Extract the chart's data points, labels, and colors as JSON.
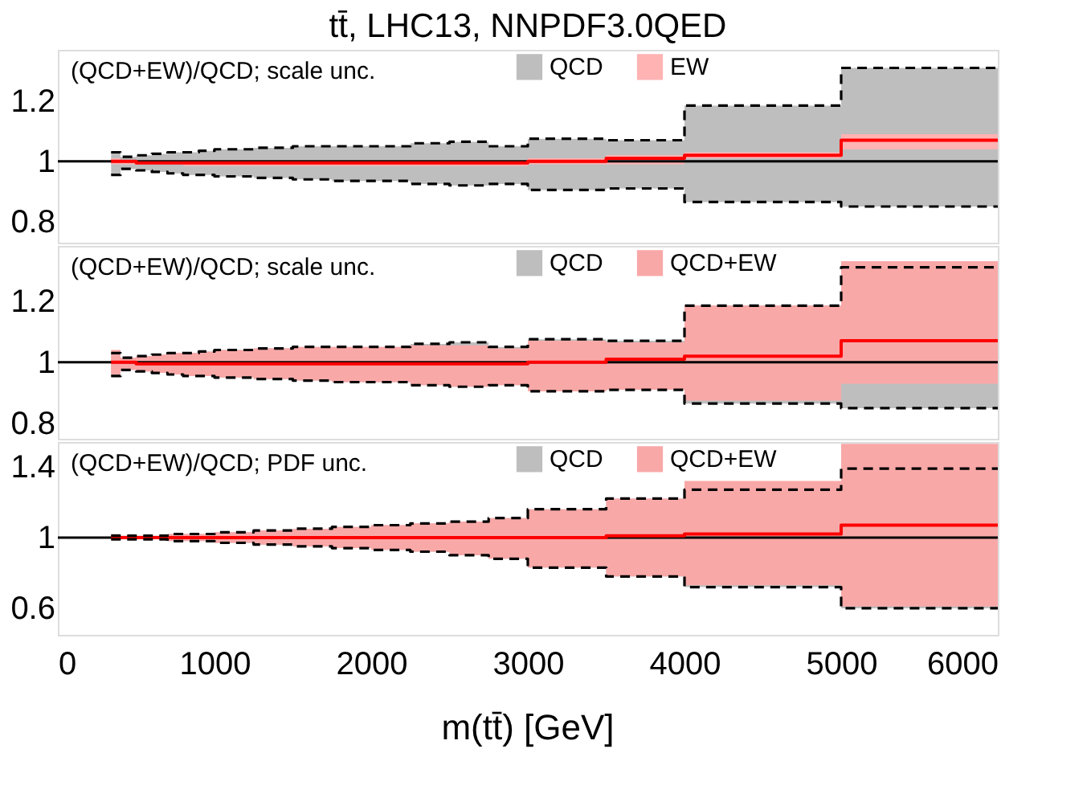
{
  "chart_data": [
    {
      "type": "step",
      "title": "tt̄, LHC13, NNPDF3.0QED",
      "annotations": [
        "(QCD+EW)/QCD; scale unc."
      ],
      "legend": "top right",
      "tick_labels": "y",
      "grid": false,
      "x": [
        340,
        400,
        500,
        600,
        700,
        800,
        900,
        1000,
        1250,
        1500,
        1750,
        2000,
        2250,
        2500,
        2750,
        3000,
        3500,
        4000,
        5000,
        6000
      ],
      "xlim": [
        0,
        6000
      ],
      "xticks": [
        0,
        1000,
        2000,
        3000,
        4000,
        5000,
        6000
      ],
      "ylim": [
        0.73,
        1.37
      ],
      "yticks": [
        0.8,
        1,
        1.2
      ],
      "ref_lines": [
        {
          "axis": "y",
          "value": 1,
          "color": "#000000"
        }
      ],
      "series": [
        {
          "name": "QCD",
          "color": "#bebebe",
          "values": [
            null,
            null,
            null,
            null,
            null,
            null,
            null,
            null,
            null,
            null,
            null,
            null,
            null,
            null,
            null,
            null,
            null,
            null,
            null,
            null
          ],
          "upper": [
            1.03,
            1.015,
            1.02,
            1.025,
            1.03,
            1.03,
            1.035,
            1.04,
            1.045,
            1.05,
            1.05,
            1.05,
            1.06,
            1.065,
            1.05,
            1.075,
            1.07,
            1.185,
            1.31,
            1.31
          ],
          "lower": [
            0.955,
            0.975,
            0.97,
            0.965,
            0.96,
            0.955,
            0.955,
            0.95,
            0.945,
            0.94,
            0.935,
            0.935,
            0.925,
            0.92,
            0.925,
            0.905,
            0.91,
            0.865,
            0.85,
            0.85
          ]
        },
        {
          "name": "EW",
          "color": "#ffb3b3",
          "values": [
            null,
            null,
            null,
            null,
            null,
            null,
            null,
            null,
            null,
            null,
            null,
            null,
            null,
            null,
            null,
            null,
            null,
            null,
            null,
            null
          ],
          "upper": [
            1.01,
            1.005,
            1.005,
            1.005,
            1.005,
            1.005,
            1.005,
            1.005,
            1.005,
            1.005,
            1.005,
            1.005,
            1.005,
            1.005,
            1.005,
            1.01,
            1.02,
            1.03,
            1.09,
            1.09
          ],
          "lower": [
            0.99,
            0.99,
            0.99,
            0.99,
            0.99,
            0.985,
            0.985,
            0.985,
            0.985,
            0.985,
            0.985,
            0.985,
            0.985,
            0.985,
            0.985,
            0.99,
            0.99,
            1.01,
            1.04,
            1.04
          ]
        },
        {
          "color": "#ff0000",
          "values": [
            1.0,
            1.0,
            0.995,
            0.995,
            0.995,
            0.995,
            0.995,
            0.995,
            0.995,
            0.995,
            0.995,
            0.995,
            0.995,
            0.995,
            0.995,
            1.0,
            1.01,
            1.02,
            1.07,
            1.07
          ]
        },
        {
          "color": "#000000",
          "line_style": "dashed",
          "values": [
            1.03,
            1.015,
            1.02,
            1.025,
            1.03,
            1.03,
            1.035,
            1.04,
            1.045,
            1.05,
            1.05,
            1.05,
            1.06,
            1.065,
            1.05,
            1.075,
            1.07,
            1.185,
            1.31,
            1.31
          ]
        },
        {
          "color": "#000000",
          "line_style": "dashed",
          "values": [
            0.955,
            0.975,
            0.97,
            0.965,
            0.96,
            0.955,
            0.955,
            0.95,
            0.945,
            0.94,
            0.935,
            0.935,
            0.925,
            0.92,
            0.925,
            0.905,
            0.91,
            0.865,
            0.85,
            0.85
          ]
        }
      ]
    },
    {
      "type": "step",
      "annotations": [
        "(QCD+EW)/QCD; scale unc."
      ],
      "legend": "top right",
      "tick_labels": "y",
      "grid": false,
      "x": [
        340,
        400,
        500,
        600,
        700,
        800,
        900,
        1000,
        1250,
        1500,
        1750,
        2000,
        2250,
        2500,
        2750,
        3000,
        3500,
        4000,
        5000,
        6000
      ],
      "xlim": [
        0,
        6000
      ],
      "xticks": [
        0,
        1000,
        2000,
        3000,
        4000,
        5000,
        6000
      ],
      "ylim": [
        0.75,
        1.38
      ],
      "yticks": [
        0.8,
        1,
        1.2
      ],
      "ref_lines": [
        {
          "axis": "y",
          "value": 1,
          "color": "#000000"
        }
      ],
      "series": [
        {
          "name": "QCD",
          "color": "#bebebe",
          "values": [
            null,
            null,
            null,
            null,
            null,
            null,
            null,
            null,
            null,
            null,
            null,
            null,
            null,
            null,
            null,
            null,
            null,
            null,
            null,
            null
          ],
          "upper": [
            1.03,
            1.015,
            1.02,
            1.025,
            1.03,
            1.03,
            1.035,
            1.04,
            1.045,
            1.05,
            1.05,
            1.05,
            1.06,
            1.065,
            1.05,
            1.075,
            1.07,
            1.185,
            1.31,
            1.31
          ],
          "lower": [
            0.955,
            0.975,
            0.97,
            0.965,
            0.96,
            0.955,
            0.955,
            0.95,
            0.945,
            0.94,
            0.935,
            0.935,
            0.925,
            0.92,
            0.925,
            0.905,
            0.91,
            0.865,
            0.85,
            0.85
          ]
        },
        {
          "name": "QCD+EW",
          "color": "#f9a8a8",
          "values": [
            null,
            null,
            null,
            null,
            null,
            null,
            null,
            null,
            null,
            null,
            null,
            null,
            null,
            null,
            null,
            null,
            null,
            null,
            null,
            null
          ],
          "upper": [
            1.04,
            1.015,
            1.02,
            1.025,
            1.03,
            1.03,
            1.035,
            1.04,
            1.045,
            1.05,
            1.05,
            1.05,
            1.055,
            1.055,
            1.045,
            1.07,
            1.065,
            1.185,
            1.33,
            1.33
          ],
          "lower": [
            0.96,
            0.975,
            0.97,
            0.965,
            0.96,
            0.955,
            0.955,
            0.95,
            0.945,
            0.94,
            0.935,
            0.935,
            0.925,
            0.92,
            0.925,
            0.905,
            0.91,
            0.875,
            0.93,
            0.93
          ]
        },
        {
          "color": "#ff0000",
          "values": [
            1.0,
            1.0,
            0.995,
            0.995,
            0.995,
            0.995,
            0.995,
            0.995,
            0.995,
            0.995,
            0.995,
            0.995,
            0.995,
            0.995,
            0.995,
            1.0,
            1.01,
            1.02,
            1.07,
            1.07
          ]
        },
        {
          "color": "#000000",
          "line_style": "dashed",
          "values": [
            1.03,
            1.015,
            1.02,
            1.025,
            1.03,
            1.03,
            1.035,
            1.04,
            1.045,
            1.05,
            1.05,
            1.05,
            1.06,
            1.065,
            1.05,
            1.075,
            1.07,
            1.185,
            1.31,
            1.31
          ]
        },
        {
          "color": "#000000",
          "line_style": "dashed",
          "values": [
            0.955,
            0.975,
            0.97,
            0.965,
            0.96,
            0.955,
            0.955,
            0.95,
            0.945,
            0.94,
            0.935,
            0.935,
            0.925,
            0.92,
            0.925,
            0.905,
            0.91,
            0.865,
            0.85,
            0.85
          ]
        }
      ]
    },
    {
      "type": "step",
      "annotations": [
        "(QCD+EW)/QCD; PDF unc."
      ],
      "legend": "top right",
      "xlabel": "m(tt̄) [GeV]",
      "grid": false,
      "x": [
        340,
        400,
        500,
        600,
        700,
        800,
        900,
        1000,
        1250,
        1500,
        1750,
        2000,
        2250,
        2500,
        2750,
        3000,
        3500,
        4000,
        5000,
        6000
      ],
      "xlim": [
        0,
        6000
      ],
      "xticks": [
        0,
        1000,
        2000,
        3000,
        4000,
        5000,
        6000
      ],
      "ylim": [
        0.45,
        1.54
      ],
      "yticks": [
        0.6,
        1,
        1.4
      ],
      "ref_lines": [
        {
          "axis": "y",
          "value": 1,
          "color": "#000000"
        }
      ],
      "series": [
        {
          "name": "QCD",
          "color": "#bebebe",
          "values": [
            null,
            null,
            null,
            null,
            null,
            null,
            null,
            null,
            null,
            null,
            null,
            null,
            null,
            null,
            null,
            null,
            null,
            null,
            null,
            null
          ],
          "upper": [
            1.01,
            1.01,
            1.01,
            1.01,
            1.02,
            1.02,
            1.02,
            1.03,
            1.04,
            1.05,
            1.06,
            1.07,
            1.08,
            1.09,
            1.11,
            1.16,
            1.22,
            1.27,
            1.39,
            1.39
          ],
          "lower": [
            0.99,
            0.99,
            0.99,
            0.99,
            0.98,
            0.98,
            0.98,
            0.97,
            0.96,
            0.95,
            0.94,
            0.93,
            0.92,
            0.9,
            0.88,
            0.83,
            0.78,
            0.72,
            0.6,
            0.6
          ]
        },
        {
          "name": "QCD+EW",
          "color": "#f9a8a8",
          "values": [
            null,
            null,
            null,
            null,
            null,
            null,
            null,
            null,
            null,
            null,
            null,
            null,
            null,
            null,
            null,
            null,
            null,
            null,
            null,
            null
          ],
          "upper": [
            1.02,
            1.01,
            1.01,
            1.01,
            1.02,
            1.02,
            1.02,
            1.03,
            1.04,
            1.05,
            1.06,
            1.07,
            1.08,
            1.09,
            1.11,
            1.16,
            1.22,
            1.32,
            1.53,
            1.53
          ],
          "lower": [
            0.99,
            0.99,
            0.99,
            0.99,
            0.98,
            0.98,
            0.98,
            0.97,
            0.96,
            0.95,
            0.94,
            0.93,
            0.92,
            0.9,
            0.88,
            0.83,
            0.78,
            0.73,
            0.61,
            0.61
          ]
        },
        {
          "color": "#ff0000",
          "values": [
            1.0,
            1.0,
            1.0,
            1.0,
            1.0,
            1.0,
            1.0,
            1.0,
            1.0,
            1.0,
            1.0,
            1.0,
            1.0,
            1.0,
            1.0,
            1.0,
            1.01,
            1.02,
            1.07,
            1.07
          ]
        },
        {
          "color": "#000000",
          "line_style": "dashed",
          "values": [
            1.01,
            1.01,
            1.01,
            1.01,
            1.02,
            1.02,
            1.02,
            1.03,
            1.04,
            1.05,
            1.06,
            1.07,
            1.08,
            1.09,
            1.11,
            1.16,
            1.22,
            1.27,
            1.39,
            1.39
          ]
        },
        {
          "color": "#000000",
          "line_style": "dashed",
          "values": [
            0.99,
            0.99,
            0.99,
            0.99,
            0.98,
            0.98,
            0.98,
            0.97,
            0.96,
            0.95,
            0.94,
            0.93,
            0.92,
            0.9,
            0.88,
            0.83,
            0.78,
            0.72,
            0.6,
            0.6
          ]
        }
      ]
    }
  ]
}
